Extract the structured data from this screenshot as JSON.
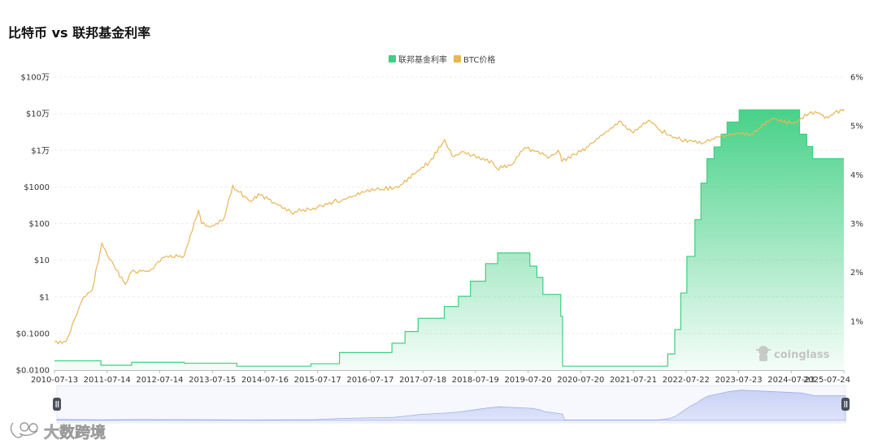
{
  "chart_title": "比特币 vs 联邦基金利率",
  "legend": [
    {
      "label": "联邦基金利率",
      "color": "#3ecf82"
    },
    {
      "label": "BTC价格",
      "color": "#e8b657"
    }
  ],
  "watermark": "coinglass",
  "brand": "大数跨境",
  "chart_data": {
    "type": "area",
    "title": "比特币 vs 联邦基金利率",
    "x_tick_labels": [
      "2010-07-13",
      "2011-07-14",
      "2012-07-14",
      "2013-07-15",
      "2014-07-16",
      "2015-07-17",
      "2016-07-17",
      "2017-07-18",
      "2018-07-19",
      "2019-07-20",
      "2020-07-20",
      "2021-07-21",
      "2022-07-22",
      "2023-07-23",
      "2024-07-23",
      "2025-07-24"
    ],
    "y_left_tick_labels": [
      "$0.0100",
      "$0.1000",
      "$1",
      "$10",
      "$100",
      "$1000",
      "$1万",
      "$10万",
      "$100万"
    ],
    "y_left_scale": "log",
    "y_left_range": [
      0.01,
      1000000
    ],
    "y_right_tick_labels": [
      "1%",
      "2%",
      "3%",
      "4%",
      "5%",
      "6%"
    ],
    "y_right_range": [
      0.0,
      6.0
    ],
    "grid": "horizontal dashed",
    "legend_position": "top-center",
    "series": [
      {
        "name": "联邦基金利率",
        "type": "area-step",
        "axis": "right",
        "color": "#3ecf82",
        "points": [
          [
            "2010-07-13",
            0.19
          ],
          [
            "2011-06-01",
            0.1
          ],
          [
            "2012-01-01",
            0.16
          ],
          [
            "2013-01-01",
            0.14
          ],
          [
            "2014-01-01",
            0.08
          ],
          [
            "2015-06-01",
            0.13
          ],
          [
            "2015-12-16",
            0.36
          ],
          [
            "2016-12-15",
            0.55
          ],
          [
            "2017-03-16",
            0.79
          ],
          [
            "2017-06-15",
            1.06
          ],
          [
            "2017-12-14",
            1.3
          ],
          [
            "2018-03-22",
            1.51
          ],
          [
            "2018-06-14",
            1.82
          ],
          [
            "2018-09-27",
            2.18
          ],
          [
            "2018-12-20",
            2.4
          ],
          [
            "2019-08-01",
            2.13
          ],
          [
            "2019-09-19",
            1.9
          ],
          [
            "2019-10-31",
            1.55
          ],
          [
            "2020-03-03",
            1.1
          ],
          [
            "2020-03-16",
            0.08
          ],
          [
            "2021-12-31",
            0.08
          ],
          [
            "2022-03-17",
            0.33
          ],
          [
            "2022-05-05",
            0.83
          ],
          [
            "2022-06-16",
            1.58
          ],
          [
            "2022-07-28",
            2.33
          ],
          [
            "2022-09-22",
            3.08
          ],
          [
            "2022-11-03",
            3.83
          ],
          [
            "2022-12-15",
            4.33
          ],
          [
            "2023-02-02",
            4.57
          ],
          [
            "2023-03-23",
            4.83
          ],
          [
            "2023-05-04",
            5.08
          ],
          [
            "2023-07-27",
            5.33
          ],
          [
            "2024-09-19",
            4.83
          ],
          [
            "2024-11-08",
            4.58
          ],
          [
            "2024-12-19",
            4.33
          ],
          [
            "2025-07-24",
            4.33
          ]
        ]
      },
      {
        "name": "BTC价格",
        "type": "line",
        "axis": "left",
        "color": "#e8b657",
        "points": [
          [
            "2010-07-13",
            0.06
          ],
          [
            "2010-10-01",
            0.06
          ],
          [
            "2010-12-01",
            0.25
          ],
          [
            "2011-02-01",
            1
          ],
          [
            "2011-04-01",
            1.5
          ],
          [
            "2011-06-08",
            29
          ],
          [
            "2011-07-15",
            14
          ],
          [
            "2011-09-01",
            7
          ],
          [
            "2011-11-18",
            2.2
          ],
          [
            "2012-01-01",
            5
          ],
          [
            "2012-05-01",
            5
          ],
          [
            "2012-08-15",
            12
          ],
          [
            "2012-12-31",
            13
          ],
          [
            "2013-04-10",
            230
          ],
          [
            "2013-05-01",
            100
          ],
          [
            "2013-07-01",
            80
          ],
          [
            "2013-10-01",
            130
          ],
          [
            "2013-12-04",
            1100
          ],
          [
            "2014-01-01",
            800
          ],
          [
            "2014-04-10",
            400
          ],
          [
            "2014-06-01",
            650
          ],
          [
            "2014-10-01",
            350
          ],
          [
            "2015-01-14",
            200
          ],
          [
            "2015-07-15",
            280
          ],
          [
            "2015-11-04",
            400
          ],
          [
            "2016-01-01",
            430
          ],
          [
            "2016-06-16",
            750
          ],
          [
            "2016-12-31",
            960
          ],
          [
            "2017-03-01",
            1200
          ],
          [
            "2017-06-01",
            2500
          ],
          [
            "2017-09-01",
            4700
          ],
          [
            "2017-12-17",
            19500
          ],
          [
            "2018-02-06",
            7000
          ],
          [
            "2018-05-01",
            9000
          ],
          [
            "2018-11-20",
            4500
          ],
          [
            "2018-12-15",
            3200
          ],
          [
            "2019-04-01",
            4100
          ],
          [
            "2019-06-26",
            12000
          ],
          [
            "2019-09-01",
            9600
          ],
          [
            "2019-12-18",
            6600
          ],
          [
            "2020-02-14",
            10000
          ],
          [
            "2020-03-12",
            5000
          ],
          [
            "2020-07-20",
            9200
          ],
          [
            "2020-12-31",
            29000
          ],
          [
            "2021-04-14",
            63000
          ],
          [
            "2021-07-20",
            30000
          ],
          [
            "2021-11-10",
            67000
          ],
          [
            "2022-01-24",
            35000
          ],
          [
            "2022-06-18",
            19000
          ],
          [
            "2022-11-21",
            16000
          ],
          [
            "2023-03-01",
            23000
          ],
          [
            "2023-07-23",
            30000
          ],
          [
            "2023-10-15",
            27000
          ],
          [
            "2024-03-14",
            73000
          ],
          [
            "2024-08-05",
            54000
          ],
          [
            "2024-11-22",
            98000
          ],
          [
            "2025-01-20",
            106000
          ],
          [
            "2025-04-08",
            77000
          ],
          [
            "2025-05-22",
            110000
          ],
          [
            "2025-07-14",
            122000
          ],
          [
            "2025-07-24",
            118000
          ]
        ]
      }
    ]
  }
}
